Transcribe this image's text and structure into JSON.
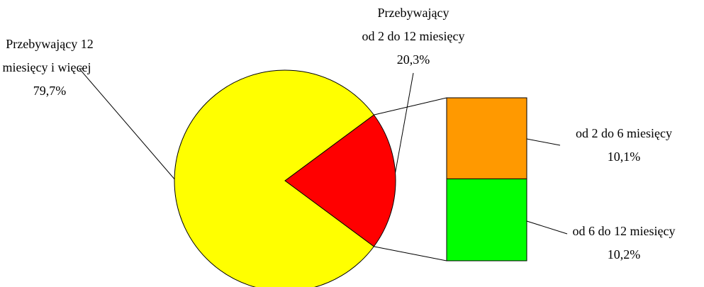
{
  "chart_data": {
    "type": "pie",
    "categories": [
      [
        "Przebywający 12",
        "miesięcy i więcej"
      ],
      [
        "Przebywający",
        "od 2 do 12 miesięcy"
      ]
    ],
    "values": [
      79.7,
      20.3
    ],
    "value_labels": [
      "79,7%",
      "20,3%"
    ],
    "colors": [
      "#ffff00",
      "#ff0000"
    ],
    "bar": {
      "categories": [
        "od 2 do 6 miesięcy",
        "od 6 do 12 miesięcy"
      ],
      "values": [
        10.1,
        10.2
      ],
      "value_labels": [
        "10,1%",
        "10,2%"
      ],
      "colors": [
        "#ff9900",
        "#00ff00"
      ]
    }
  }
}
